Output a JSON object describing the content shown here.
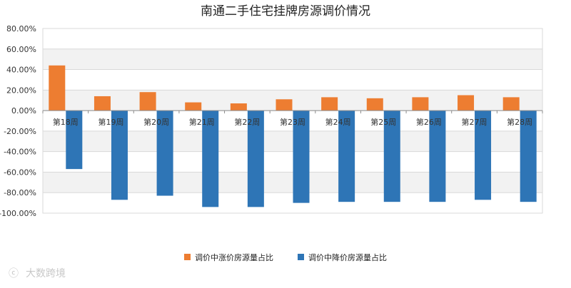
{
  "chart_data": {
    "type": "bar",
    "title": "南通二手住宅挂牌房源调价情况",
    "xlabel": "",
    "ylabel": "",
    "categories": [
      "第18周",
      "第19周",
      "第20周",
      "第21周",
      "第22周",
      "第23周",
      "第24周",
      "第25周",
      "第26周",
      "第27周",
      "第28周"
    ],
    "series": [
      {
        "name": "调价中涨价房源量占比",
        "color": "#ED7D31",
        "values": [
          44,
          14,
          18,
          8,
          7,
          11,
          13,
          12,
          13,
          15,
          13
        ]
      },
      {
        "name": "调价中降价房源量占比",
        "color": "#2E75B6",
        "values": [
          -57,
          -87,
          -83,
          -94,
          -94,
          -90,
          -89,
          -89,
          -89,
          -87,
          -89
        ]
      }
    ],
    "ylim": [
      -100,
      80
    ],
    "yticks": [
      "80.00%",
      "60.00%",
      "40.00%",
      "20.00%",
      "0.00%",
      "-20.00%",
      "-40.00%",
      "-60.00%",
      "-80.00%",
      "-100.00%"
    ],
    "grid": true,
    "legend_position": "bottom"
  },
  "watermark": {
    "text": "大数跨境"
  }
}
